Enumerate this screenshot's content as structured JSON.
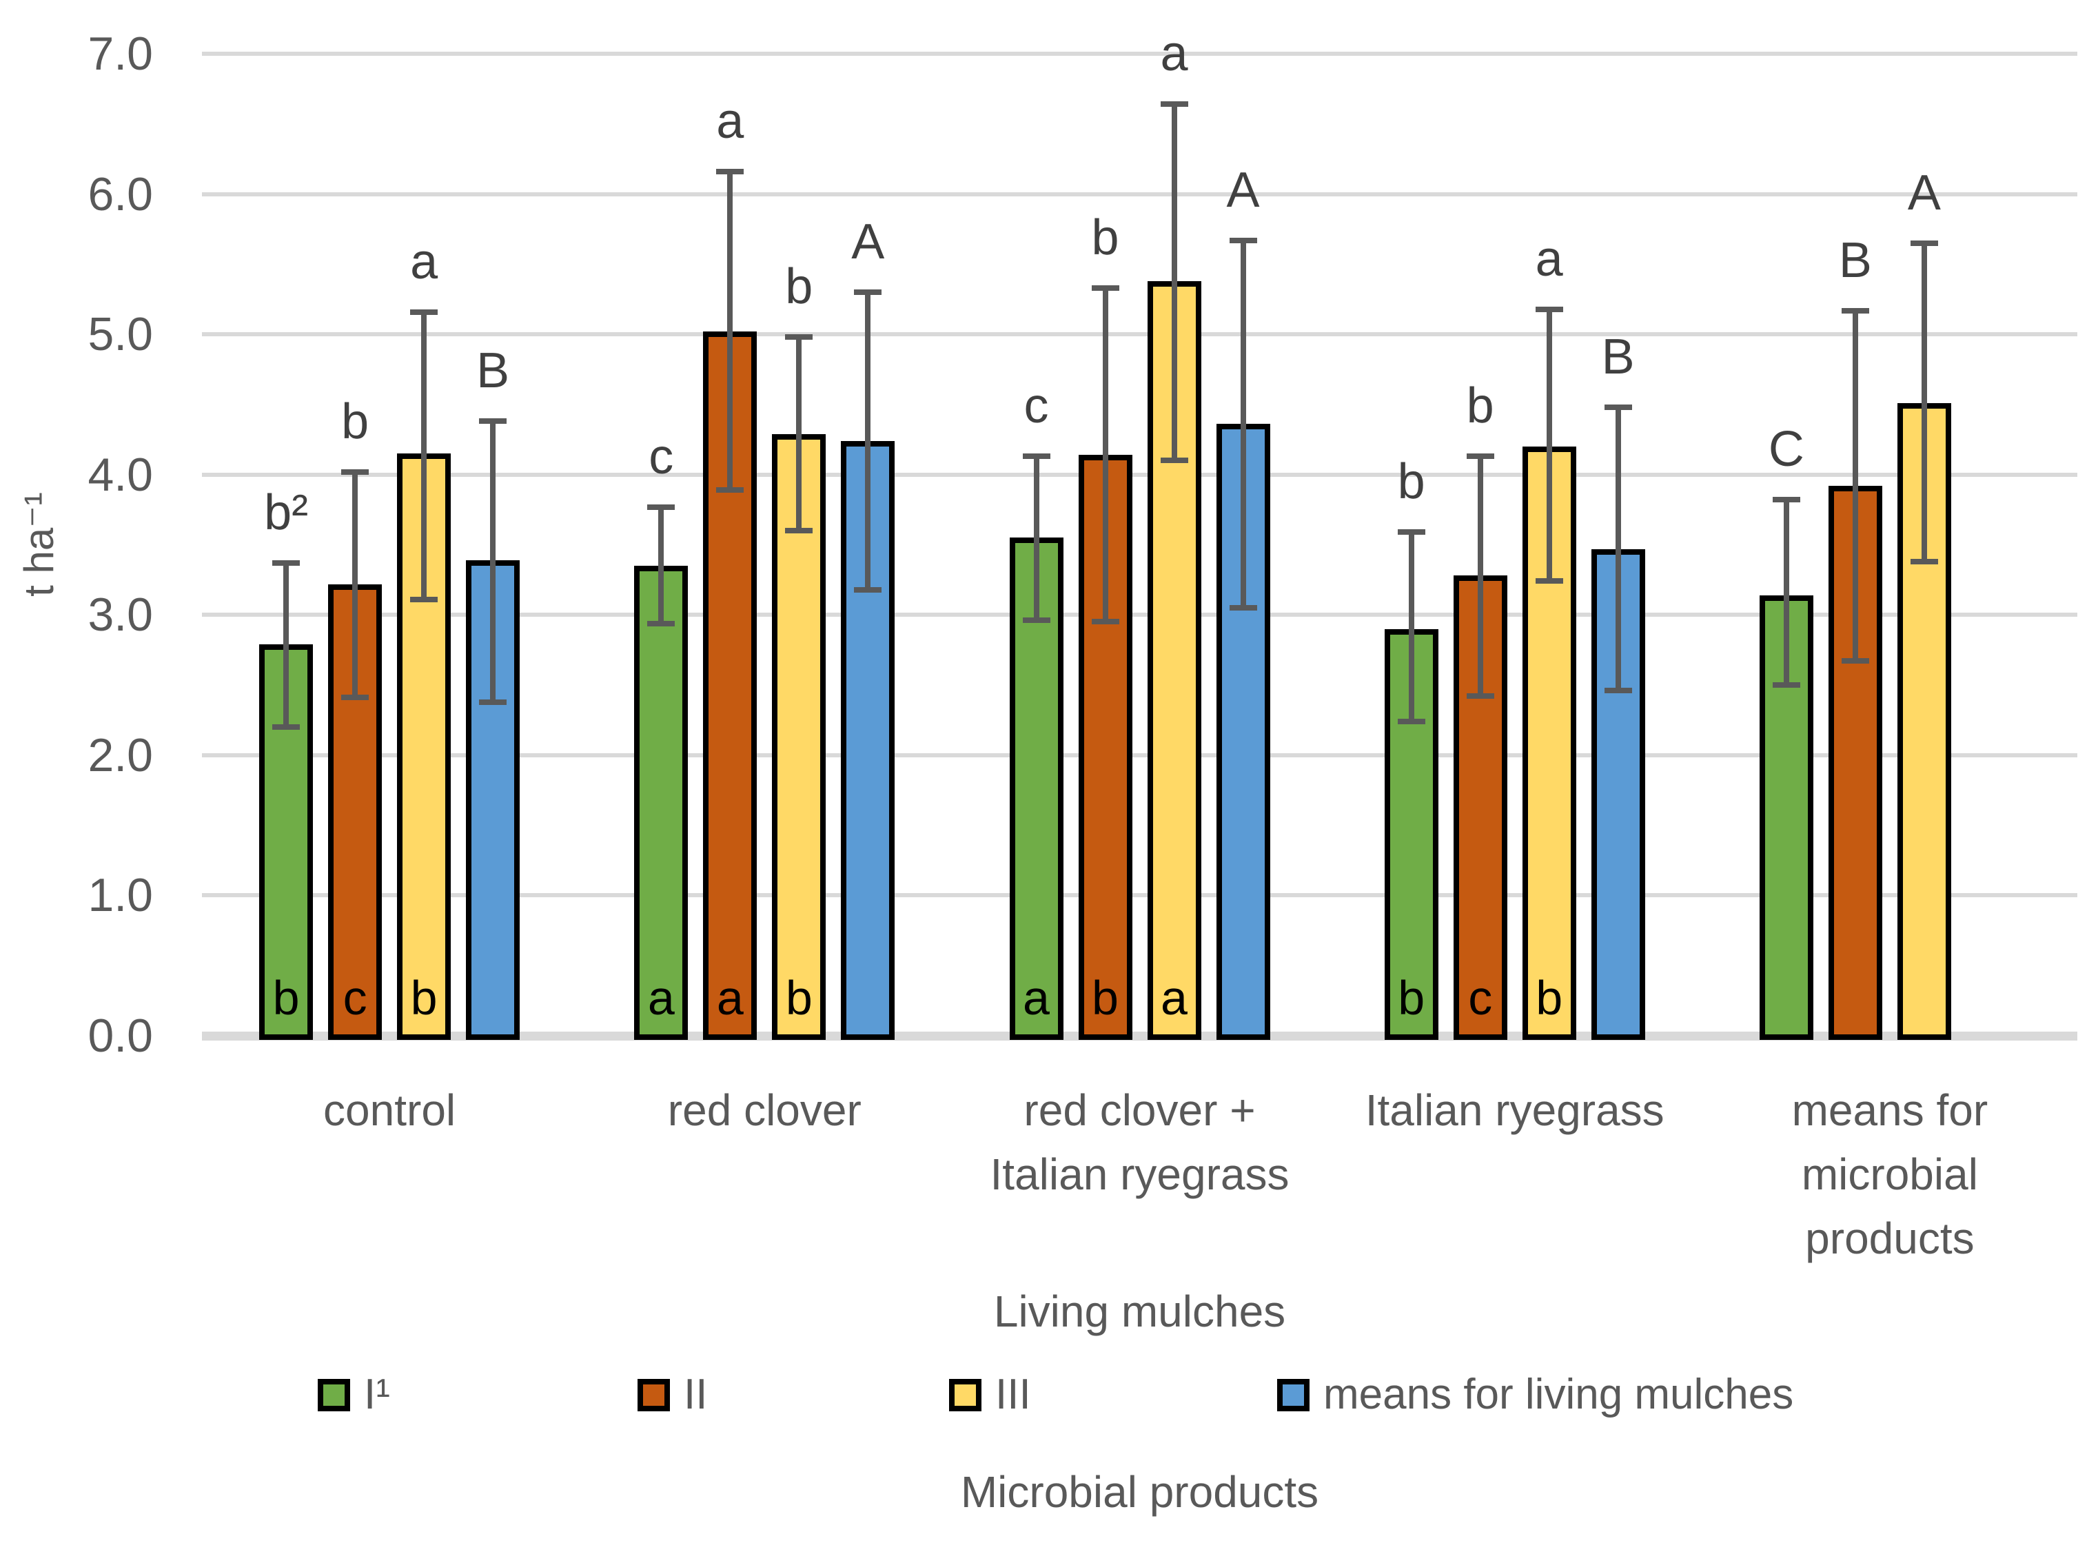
{
  "chart_data": {
    "type": "bar",
    "title": "",
    "ylabel": "t ha⁻¹",
    "xlabel": "Living mulches",
    "legend_title": "Microbial products",
    "ylim": [
      0.0,
      7.0
    ],
    "ytick_labels": [
      "7.0",
      "6.0",
      "5.0",
      "4.0",
      "3.0",
      "2.0",
      "1.0",
      "0.0"
    ],
    "grid": true,
    "legend_position": "bottom",
    "categories": [
      {
        "lines": [
          "control"
        ]
      },
      {
        "lines": [
          "red clover"
        ]
      },
      {
        "lines": [
          "red clover +",
          "Italian ryegrass"
        ]
      },
      {
        "lines": [
          "Italian ryegrass"
        ]
      },
      {
        "lines": [
          "means for",
          "microbial",
          "products"
        ]
      }
    ],
    "series": [
      {
        "name": "I¹",
        "color": "#70AD47",
        "values": [
          2.79,
          3.35,
          3.55,
          2.9,
          3.14
        ],
        "err_high": [
          3.37,
          3.77,
          4.13,
          3.59,
          3.82
        ],
        "err_low": [
          2.2,
          2.94,
          2.96,
          2.24,
          2.5
        ],
        "letters_above": [
          "b²",
          "c",
          "c",
          "b",
          "C"
        ],
        "letters_base": [
          "b",
          "a",
          "a",
          "b",
          ""
        ]
      },
      {
        "name": "II",
        "color": "#C55A11",
        "values": [
          3.22,
          5.02,
          4.14,
          3.28,
          3.92
        ],
        "err_high": [
          4.02,
          6.16,
          5.33,
          4.13,
          5.17
        ],
        "err_low": [
          2.41,
          3.89,
          2.95,
          2.42,
          2.67
        ],
        "letters_above": [
          "b",
          "a",
          "b",
          "b",
          "B"
        ],
        "letters_base": [
          "c",
          "a",
          "b",
          "c",
          ""
        ]
      },
      {
        "name": "III",
        "color": "#FFD966",
        "values": [
          4.15,
          4.29,
          5.38,
          4.2,
          4.51
        ],
        "err_high": [
          5.16,
          4.98,
          6.64,
          5.18,
          5.65
        ],
        "err_low": [
          3.11,
          3.6,
          4.1,
          3.24,
          3.38
        ],
        "letters_above": [
          "a",
          "b",
          "a",
          "a",
          "A"
        ],
        "letters_base": [
          "b",
          "b",
          "a",
          "b",
          ""
        ]
      },
      {
        "name": "means for living mulches",
        "color": "#5B9BD5",
        "values": [
          3.39,
          4.24,
          4.36,
          3.47,
          null
        ],
        "err_high": [
          4.38,
          5.3,
          5.67,
          4.48,
          null
        ],
        "err_low": [
          2.38,
          3.18,
          3.05,
          2.46,
          null
        ],
        "letters_above": [
          "B",
          "A",
          "A",
          "B",
          ""
        ],
        "letters_base": [
          "",
          "",
          "",
          "",
          ""
        ]
      }
    ],
    "styles": {
      "background": "#FFFFFF",
      "grid_color": "#D9D9D9",
      "axis_text_color": "#595959",
      "error_bar_color": "#595959",
      "bar_outline_color": "#000000",
      "letter_color": "#404040",
      "base_letter_color": "#000000"
    }
  }
}
